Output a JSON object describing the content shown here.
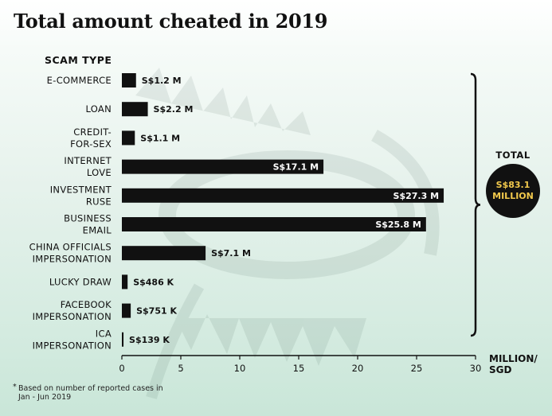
{
  "chart_data": {
    "type": "bar",
    "orientation": "horizontal",
    "title": "Total amount cheated in 2019",
    "category_axis_title": "SCAM TYPE",
    "xlabel": "MILLION/ SGD",
    "xlabel_lines": [
      "MILLION/",
      "SGD"
    ],
    "xlim": [
      0,
      30
    ],
    "xticks": [
      0,
      5,
      10,
      15,
      20,
      25,
      30
    ],
    "grid": false,
    "categories": [
      [
        "E-COMMERCE"
      ],
      [
        "LOAN"
      ],
      [
        "CREDIT-",
        "FOR-SEX"
      ],
      [
        "INTERNET",
        "LOVE"
      ],
      [
        "INVESTMENT",
        "RUSE"
      ],
      [
        "BUSINESS",
        "EMAIL"
      ],
      [
        "CHINA OFFICIALS",
        "IMPERSONATION"
      ],
      [
        "LUCKY DRAW"
      ],
      [
        "FACEBOOK",
        "IMPERSONATION"
      ],
      [
        "ICA",
        "IMPERSONATION"
      ]
    ],
    "values": [
      1.2,
      2.2,
      1.1,
      17.1,
      27.3,
      25.8,
      7.1,
      0.486,
      0.751,
      0.139
    ],
    "data_labels": [
      "S$1.2 M",
      "S$2.2 M",
      "S$1.1 M",
      "S$17.1 M",
      "S$27.3 M",
      "S$25.8 M",
      "S$7.1 M",
      "S$486 K",
      "S$751 K",
      "S$139 K"
    ],
    "total": {
      "label": "TOTAL",
      "value_lines": [
        "S$83.1",
        "MILLION"
      ],
      "value": 83.1
    },
    "footnote": {
      "marker": "*",
      "text": "Based on number of reported cases in Jan - Jun 2019"
    },
    "colors": {
      "bar": "#111111",
      "label_inside": "#ffffff",
      "label_outside": "#111111",
      "total_circle": "#111111",
      "total_text": "#f2c94c"
    }
  }
}
